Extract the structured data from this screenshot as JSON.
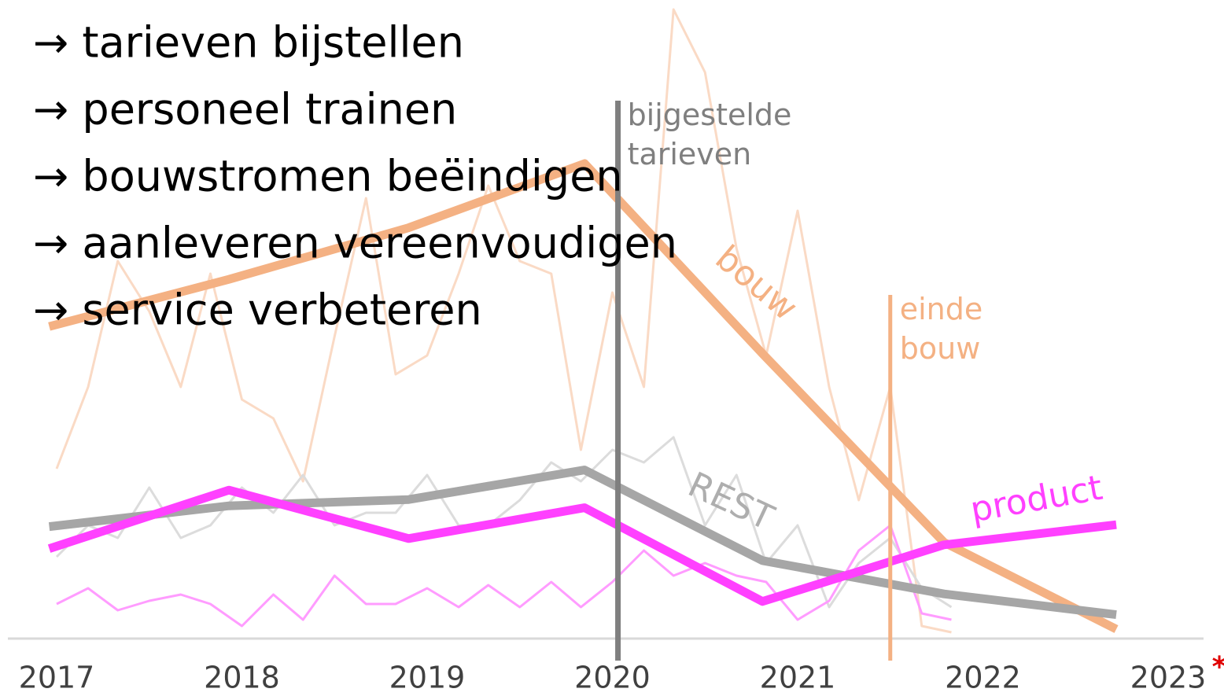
{
  "chart_data": {
    "type": "line",
    "bullets": [
      "→ tarieven bijstellen",
      "→ personeel trainen",
      "→ bouwstromen beëindigen",
      "→ aanleveren vereenvoudigen",
      "→ service verbeteren"
    ],
    "xlim": [
      2017,
      2023
    ],
    "ylim": [
      0,
      100
    ],
    "xticks": [
      2017,
      2018,
      2019,
      2020,
      2021,
      2022,
      2023
    ],
    "footnote_mark": "*",
    "x": [
      2016.96,
      2017.93,
      2018.9,
      2019.85,
      2020.81,
      2021.79,
      2022.72
    ],
    "series": [
      {
        "name": "bouw",
        "color": "#f4b183",
        "values": [
          49.6,
          57.1,
          65.3,
          75.5,
          45.3,
          15.3,
          1.5
        ]
      },
      {
        "name": "REST",
        "color": "#a6a6a6",
        "values": [
          17.8,
          21.1,
          22.1,
          26.8,
          12.4,
          7.1,
          3.8
        ]
      },
      {
        "name": "product",
        "color": "#ff40ff",
        "values": [
          14.3,
          23.6,
          15.9,
          20.8,
          5.9,
          14.9,
          18.1
        ]
      }
    ],
    "x_monthly": [
      2017,
      2017.17,
      2017.33,
      2017.5,
      2017.67,
      2017.83,
      2018,
      2018.17,
      2018.33,
      2018.5,
      2018.67,
      2018.83,
      2019,
      2019.17,
      2019.33,
      2019.5,
      2019.67,
      2019.83,
      2020,
      2020.17,
      2020.33,
      2020.5,
      2020.67,
      2020.83,
      2021,
      2021.17,
      2021.33,
      2021.5,
      2021.67,
      2021.83
    ],
    "monthly_series": [
      {
        "color": "#fadac5",
        "values": [
          27,
          40,
          60,
          52,
          40,
          58,
          38,
          35,
          25,
          48,
          70,
          42,
          45,
          58,
          72,
          60,
          58,
          30,
          55,
          40,
          100,
          90,
          62,
          45,
          68,
          40,
          22,
          40,
          2,
          1
        ]
      },
      {
        "color": "#dcdcdc",
        "values": [
          13,
          18,
          16,
          24,
          16,
          18,
          24,
          20,
          26,
          18,
          20,
          20,
          26,
          18,
          18,
          22,
          28,
          25,
          30,
          28,
          32,
          18,
          26,
          12,
          18,
          5,
          12,
          16,
          8,
          5
        ]
      },
      {
        "color": "#ff9cff",
        "values": [
          5.5,
          8,
          4.5,
          6,
          7,
          5.5,
          2,
          7,
          3,
          10,
          5.5,
          5.5,
          8,
          5,
          8.5,
          5,
          9,
          5,
          9,
          14,
          10,
          12,
          10,
          9,
          3,
          6,
          14,
          18,
          4,
          3
        ]
      }
    ],
    "markers": [
      {
        "x": 2020.03,
        "label": "bijgestelde tarieven",
        "color": "#7f7f7f"
      },
      {
        "x": 2021.5,
        "label": "einde bouw",
        "color": "#f4b183"
      }
    ]
  }
}
